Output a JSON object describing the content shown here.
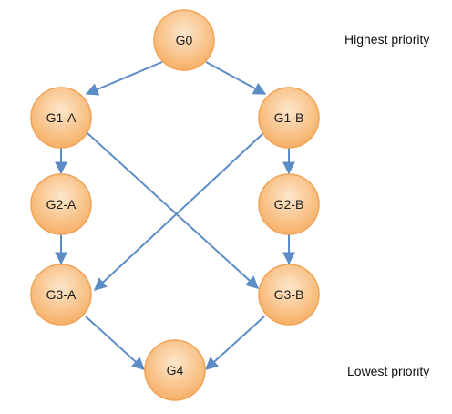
{
  "nodes": {
    "g0": {
      "label": "G0"
    },
    "g1a": {
      "label": "G1-A"
    },
    "g1b": {
      "label": "G1-B"
    },
    "g2a": {
      "label": "G2-A"
    },
    "g2b": {
      "label": "G2-B"
    },
    "g3a": {
      "label": "G3-A"
    },
    "g3b": {
      "label": "G3-B"
    },
    "g4": {
      "label": "G4"
    }
  },
  "edges": [
    {
      "from": "G0",
      "to": "G1-A"
    },
    {
      "from": "G0",
      "to": "G1-B"
    },
    {
      "from": "G1-A",
      "to": "G2-A"
    },
    {
      "from": "G1-B",
      "to": "G2-B"
    },
    {
      "from": "G1-A",
      "to": "G3-B"
    },
    {
      "from": "G1-B",
      "to": "G3-A"
    },
    {
      "from": "G2-A",
      "to": "G3-A"
    },
    {
      "from": "G2-B",
      "to": "G3-B"
    },
    {
      "from": "G3-A",
      "to": "G4"
    },
    {
      "from": "G3-B",
      "to": "G4"
    }
  ],
  "priority_labels": {
    "highest": "Highest priority",
    "lowest": "Lowest priority"
  },
  "colors": {
    "node_fill_light": "#fde3c4",
    "node_fill_dark": "#f7b56e",
    "node_stroke": "#f0a458",
    "edge": "#5b8cc6"
  }
}
